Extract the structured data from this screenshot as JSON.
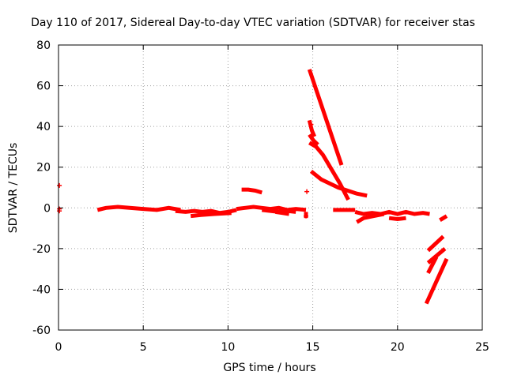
{
  "chart_data": {
    "type": "scatter",
    "title": "Day 110 of 2017, Sidereal Day-to-day VTEC variation (SDTVAR) for receiver stas",
    "xlabel": "GPS time / hours",
    "ylabel": "SDTVAR / TECUs",
    "xlim": [
      0,
      25
    ],
    "ylim": [
      -60,
      80
    ],
    "xticks": [
      0,
      5,
      10,
      15,
      20,
      25
    ],
    "yticks": [
      -60,
      -40,
      -20,
      0,
      20,
      40,
      60,
      80
    ],
    "xtick_labels": [
      "0",
      "5",
      "10",
      "15",
      "20",
      "25"
    ],
    "ytick_labels": [
      "-60",
      "-40",
      "-20",
      "0",
      "20",
      "40",
      "60",
      "80"
    ],
    "grid": true,
    "marker": "+",
    "color": "#ff0000",
    "series": [
      {
        "name": "points",
        "points": [
          {
            "x": 0.05,
            "y": 11
          },
          {
            "x": 0.05,
            "y": -0.5
          },
          {
            "x": 0.05,
            "y": -1.5
          },
          {
            "x": 14.65,
            "y": 8
          },
          {
            "x": 14.6,
            "y": -4
          },
          {
            "x": 14.9,
            "y": 41
          }
        ]
      },
      {
        "name": "tracks",
        "segments": [
          {
            "x": [
              2.3,
              2.8,
              3.5,
              4.2,
              5.0,
              5.8,
              6.5,
              7.2
            ],
            "y": [
              -1,
              0,
              0.5,
              0,
              -0.5,
              -1,
              0,
              -1
            ]
          },
          {
            "x": [
              6.9,
              7.5,
              8.0,
              8.5,
              9.0,
              9.5,
              10.0,
              10.5
            ],
            "y": [
              -1.5,
              -2,
              -1.5,
              -2,
              -1.5,
              -2.5,
              -2,
              -1
            ]
          },
          {
            "x": [
              7.8,
              8.4,
              9.2,
              10.2
            ],
            "y": [
              -4,
              -3.5,
              -3,
              -2.5
            ]
          },
          {
            "x": [
              10.5,
              11.0,
              11.5,
              12.0,
              12.5,
              13.0,
              13.5,
              14.0,
              14.6
            ],
            "y": [
              -0.5,
              0,
              0.5,
              0,
              -0.5,
              0,
              -1,
              -0.5,
              -1
            ]
          },
          {
            "x": [
              12.0,
              12.5,
              13.0,
              13.5,
              14.0
            ],
            "y": [
              -1,
              -1.5,
              -2,
              -1.5,
              -2
            ]
          },
          {
            "x": [
              10.8,
              11.2,
              11.6,
              12.0
            ],
            "y": [
              9,
              9,
              8.5,
              7.5
            ]
          },
          {
            "x": [
              12.8,
              13.2,
              13.6
            ],
            "y": [
              -2,
              -2.5,
              -3
            ]
          },
          {
            "x": [
              14.6,
              14.6
            ],
            "y": [
              -2,
              -5
            ]
          },
          {
            "x": [
              14.8,
              16.7
            ],
            "y": [
              68,
              21
            ]
          },
          {
            "x": [
              14.8,
              14.95,
              15.1
            ],
            "y": [
              43,
              38,
              35
            ]
          },
          {
            "x": [
              14.8,
              15.05,
              15.3
            ],
            "y": [
              36,
              33,
              31
            ]
          },
          {
            "x": [
              14.8,
              15.2,
              15.6,
              16.6,
              17.1
            ],
            "y": [
              32,
              30,
              26,
              12,
              4
            ]
          },
          {
            "x": [
              14.9,
              15.5,
              16.5,
              17.6,
              18.2
            ],
            "y": [
              18,
              14,
              10,
              7,
              6
            ]
          },
          {
            "x": [
              16.2,
              16.6,
              17.1,
              17.5
            ],
            "y": [
              -1,
              -1,
              -1,
              -1
            ]
          },
          {
            "x": [
              17.5,
              18.0,
              18.5,
              19.0,
              19.5,
              20.0,
              20.5,
              21.0,
              21.5,
              21.9
            ],
            "y": [
              -2,
              -3,
              -2.5,
              -3,
              -2,
              -3,
              -2,
              -3,
              -2.5,
              -3
            ]
          },
          {
            "x": [
              17.6,
              18.0,
              18.6,
              19.2
            ],
            "y": [
              -7,
              -5,
              -4,
              -3
            ]
          },
          {
            "x": [
              19.5,
              20.0,
              20.5
            ],
            "y": [
              -5,
              -5.5,
              -5
            ]
          },
          {
            "x": [
              22.5,
              22.9
            ],
            "y": [
              -6,
              -4
            ]
          },
          {
            "x": [
              21.8,
              22.7
            ],
            "y": [
              -21,
              -14
            ]
          },
          {
            "x": [
              21.8,
              22.8
            ],
            "y": [
              -27,
              -20
            ]
          },
          {
            "x": [
              21.8,
              22.3
            ],
            "y": [
              -32,
              -24
            ]
          },
          {
            "x": [
              21.7,
              22.9
            ],
            "y": [
              -47,
              -25
            ]
          }
        ]
      }
    ]
  }
}
